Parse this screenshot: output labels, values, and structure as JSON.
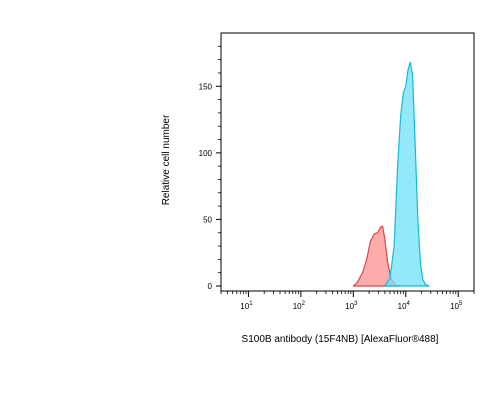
{
  "chart_data": {
    "type": "area",
    "title": "",
    "xlabel": "S100B antibody (15F4NB) [AlexaFluor®488]",
    "ylabel": "Relative cell number",
    "x_scale": "log",
    "xlim": [
      3,
      200000
    ],
    "ylim": [
      0,
      190
    ],
    "y_ticks": [
      0,
      50,
      100,
      150
    ],
    "x_ticks": [
      {
        "value": 10,
        "base": "10",
        "exp": "1"
      },
      {
        "value": 100,
        "base": "10",
        "exp": "2"
      },
      {
        "value": 1000,
        "base": "10",
        "exp": "3"
      },
      {
        "value": 10000,
        "base": "10",
        "exp": "4"
      },
      {
        "value": 100000,
        "base": "10",
        "exp": "5"
      }
    ],
    "grid": false,
    "legend": "none",
    "series": [
      {
        "fill": "#ff9e9e",
        "stroke": "#d9474b",
        "opacity": 0.85,
        "points": [
          [
            1000,
            0
          ],
          [
            1200,
            3
          ],
          [
            1500,
            10
          ],
          [
            1800,
            20
          ],
          [
            2100,
            33
          ],
          [
            2500,
            39
          ],
          [
            2900,
            40
          ],
          [
            3300,
            44
          ],
          [
            3600,
            45
          ],
          [
            4000,
            35
          ],
          [
            4500,
            18
          ],
          [
            5200,
            6
          ],
          [
            6300,
            1
          ],
          [
            8000,
            0
          ]
        ]
      },
      {
        "fill": "#6fe0f8",
        "stroke": "#17b9d9",
        "opacity": 0.75,
        "points": [
          [
            4000,
            0
          ],
          [
            5000,
            6
          ],
          [
            6000,
            30
          ],
          [
            7000,
            90
          ],
          [
            8000,
            128
          ],
          [
            9000,
            145
          ],
          [
            10000,
            150
          ],
          [
            11000,
            162
          ],
          [
            12200,
            168
          ],
          [
            13500,
            158
          ],
          [
            15000,
            110
          ],
          [
            17000,
            50
          ],
          [
            19000,
            18
          ],
          [
            21000,
            5
          ],
          [
            24000,
            1
          ],
          [
            28000,
            0
          ]
        ]
      }
    ]
  }
}
